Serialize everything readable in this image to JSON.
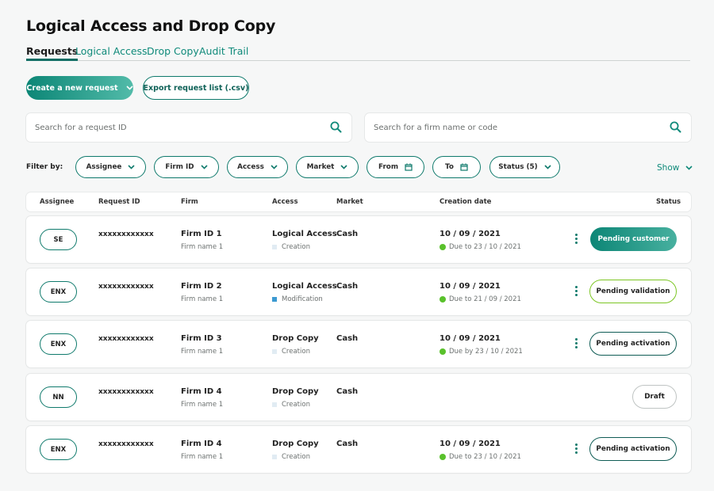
{
  "page": {
    "title": "Logical Access and Drop Copy"
  },
  "tabs": [
    {
      "label": "Requests"
    },
    {
      "label": "Logical Access"
    },
    {
      "label": "Drop Copy"
    },
    {
      "label": "Audit Trail"
    }
  ],
  "actions": {
    "create_label": "Create a new request",
    "export_label": "Export request list (.csv)"
  },
  "search": {
    "request_placeholder": "Search for a request ID",
    "firm_placeholder": "Search for a firm name or code"
  },
  "filters": {
    "label": "Filter by:",
    "items": [
      "Assignee",
      "Firm ID",
      "Access",
      "Market",
      "From",
      "To",
      "Status (5)"
    ],
    "show_label": "Show"
  },
  "table": {
    "headers": [
      "Assignee",
      "Request ID",
      "Firm",
      "Access",
      "Market",
      "Creation date",
      "Status"
    ],
    "rows": [
      {
        "assignee": "SE",
        "request_id": "xxxxxxxxxxxx",
        "firm_id": "Firm ID 1",
        "firm_name": "Firm name 1",
        "access": "Logical Access",
        "access_type": "Creation",
        "market": "Cash",
        "date": "10 / 09 / 2021",
        "due": "Due to 23 / 10 / 2021",
        "status": "Pending customer"
      },
      {
        "assignee": "ENX",
        "request_id": "xxxxxxxxxxxx",
        "firm_id": "Firm ID 2",
        "firm_name": "Firm name 1",
        "access": "Logical Access",
        "access_type": "Modification",
        "market": "Cash",
        "date": "10 / 09 / 2021",
        "due": "Due to 21 / 09 / 2021",
        "status": "Pending validation"
      },
      {
        "assignee": "ENX",
        "request_id": "xxxxxxxxxxxx",
        "firm_id": "Firm ID 3",
        "firm_name": "Firm name 1",
        "access": "Drop Copy",
        "access_type": "Creation",
        "market": "Cash",
        "date": "10 / 09 / 2021",
        "due": "Due by 23 / 10 / 2021",
        "status": "Pending activation"
      },
      {
        "assignee": "NN",
        "request_id": "xxxxxxxxxxxx",
        "firm_id": "Firm ID 4",
        "firm_name": "Firm name 1",
        "access": "Drop Copy",
        "access_type": "Creation",
        "market": "Cash",
        "date": "",
        "due": "",
        "status": "Draft"
      },
      {
        "assignee": "ENX",
        "request_id": "xxxxxxxxxxxx",
        "firm_id": "Firm ID 4",
        "firm_name": "Firm name 1",
        "access": "Drop Copy",
        "access_type": "Creation",
        "market": "Cash",
        "date": "10 / 09 / 2021",
        "due": "Due to 23 / 10 / 2021",
        "status": "Pending activation"
      }
    ]
  },
  "colors": {
    "accent": "#0f8a7a",
    "due_ok": "#59c12b",
    "modification_marker": "#3c9ad1",
    "creation_marker": "#e1ecf3"
  }
}
